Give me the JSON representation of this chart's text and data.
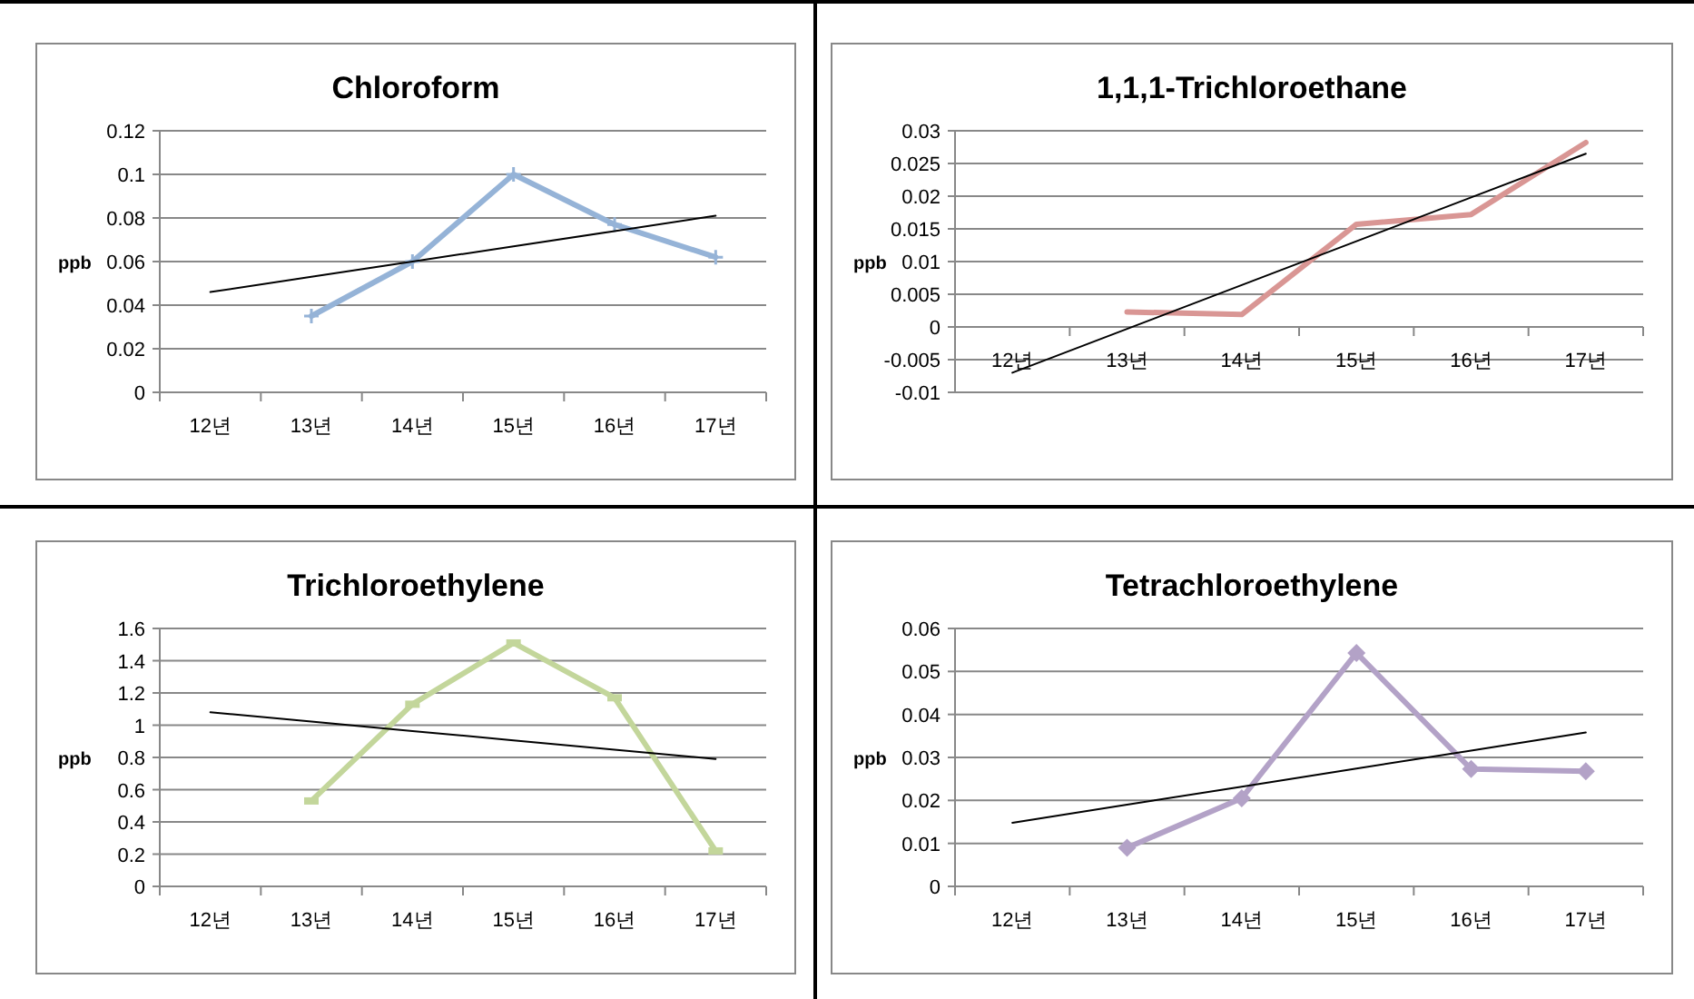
{
  "chart_data": [
    {
      "type": "line",
      "title": "Chloroform",
      "ylabel": "ppb",
      "categories": [
        "12년",
        "13년",
        "14년",
        "15년",
        "16년",
        "17년"
      ],
      "ylim": [
        0,
        0.12
      ],
      "yticks": [
        0,
        0.02,
        0.04,
        0.06,
        0.08,
        0.1,
        0.12
      ],
      "grid": "y",
      "series": [
        {
          "color": "#95b3d7",
          "marker": "cross",
          "values": [
            null,
            0.035,
            0.06,
            0.1,
            0.077,
            0.062
          ]
        },
        {
          "type": "line",
          "color": "#000000",
          "values": [
            0.046,
            0.053,
            0.06,
            0.067,
            0.074,
            0.081
          ]
        }
      ]
    },
    {
      "type": "line",
      "title": "1,1,1-Trichloroethane",
      "ylabel": "ppb",
      "categories": [
        "12년",
        "13년",
        "14년",
        "15년",
        "16년",
        "17년"
      ],
      "ylim": [
        -0.01,
        0.03
      ],
      "yticks": [
        -0.01,
        -0.005,
        0,
        0.005,
        0.01,
        0.015,
        0.02,
        0.025,
        0.03
      ],
      "grid": "y",
      "series": [
        {
          "color": "#d99694",
          "values": [
            null,
            0.0023,
            0.0019,
            0.0157,
            0.0172,
            0.0282
          ]
        },
        {
          "type": "line",
          "color": "#000000",
          "values": [
            -0.007,
            -0.0003,
            0.0064,
            0.0131,
            0.0198,
            0.0265
          ]
        }
      ]
    },
    {
      "type": "line",
      "title": "Trichloroethylene",
      "ylabel": "ppb",
      "categories": [
        "12년",
        "13년",
        "14년",
        "15년",
        "16년",
        "17년"
      ],
      "ylim": [
        0,
        1.6
      ],
      "yticks": [
        0,
        0.2,
        0.4,
        0.6,
        0.8,
        1,
        1.2,
        1.4,
        1.6
      ],
      "grid": "y",
      "series": [
        {
          "color": "#c3d69b",
          "marker": "square",
          "values": [
            null,
            0.53,
            1.13,
            1.51,
            1.17,
            0.22
          ]
        },
        {
          "type": "line",
          "color": "#000000",
          "values": [
            1.08,
            1.022,
            0.964,
            0.906,
            0.848,
            0.79
          ]
        }
      ]
    },
    {
      "type": "line",
      "title": "Tetrachloroethylene",
      "ylabel": "ppb",
      "categories": [
        "12년",
        "13년",
        "14년",
        "15년",
        "16년",
        "17년"
      ],
      "ylim": [
        0,
        0.06
      ],
      "yticks": [
        0,
        0.01,
        0.02,
        0.03,
        0.04,
        0.05,
        0.06
      ],
      "grid": "y",
      "series": [
        {
          "color": "#b3a2c7",
          "marker": "diamond",
          "values": [
            null,
            0.009,
            0.0205,
            0.0543,
            0.0273,
            0.0268
          ]
        },
        {
          "type": "line",
          "color": "#000000",
          "values": [
            0.0148,
            0.019,
            0.0232,
            0.0274,
            0.0316,
            0.0358
          ]
        }
      ]
    }
  ]
}
